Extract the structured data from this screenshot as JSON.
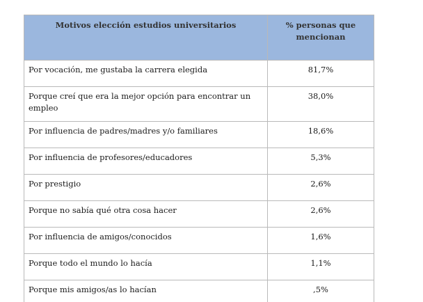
{
  "table": {
    "headers": {
      "motivo": "Motivos elección estudios universitarios",
      "pct": "% personas que mencionan"
    },
    "rows": [
      {
        "motivo": "Por vocación, me gustaba la carrera elegida",
        "pct": "81,7%"
      },
      {
        "motivo": "Porque creí que era la mejor opción para encontrar un empleo",
        "pct": "38,0%"
      },
      {
        "motivo": "Por influencia de padres/madres  y/o familiares",
        "pct": "18,6%"
      },
      {
        "motivo": "Por influencia de profesores/educadores",
        "pct": "5,3%"
      },
      {
        "motivo": "Por prestigio",
        "pct": "2,6%"
      },
      {
        "motivo": "Porque no sabía qué otra cosa hacer",
        "pct": "2,6%"
      },
      {
        "motivo": "Por influencia de amigos/conocidos",
        "pct": "1,6%"
      },
      {
        "motivo": "Porque todo el mundo lo hacía",
        "pct": "1,1%"
      },
      {
        "motivo": "Porque mis amigos/as lo hacían",
        "pct": ",5%"
      }
    ]
  }
}
